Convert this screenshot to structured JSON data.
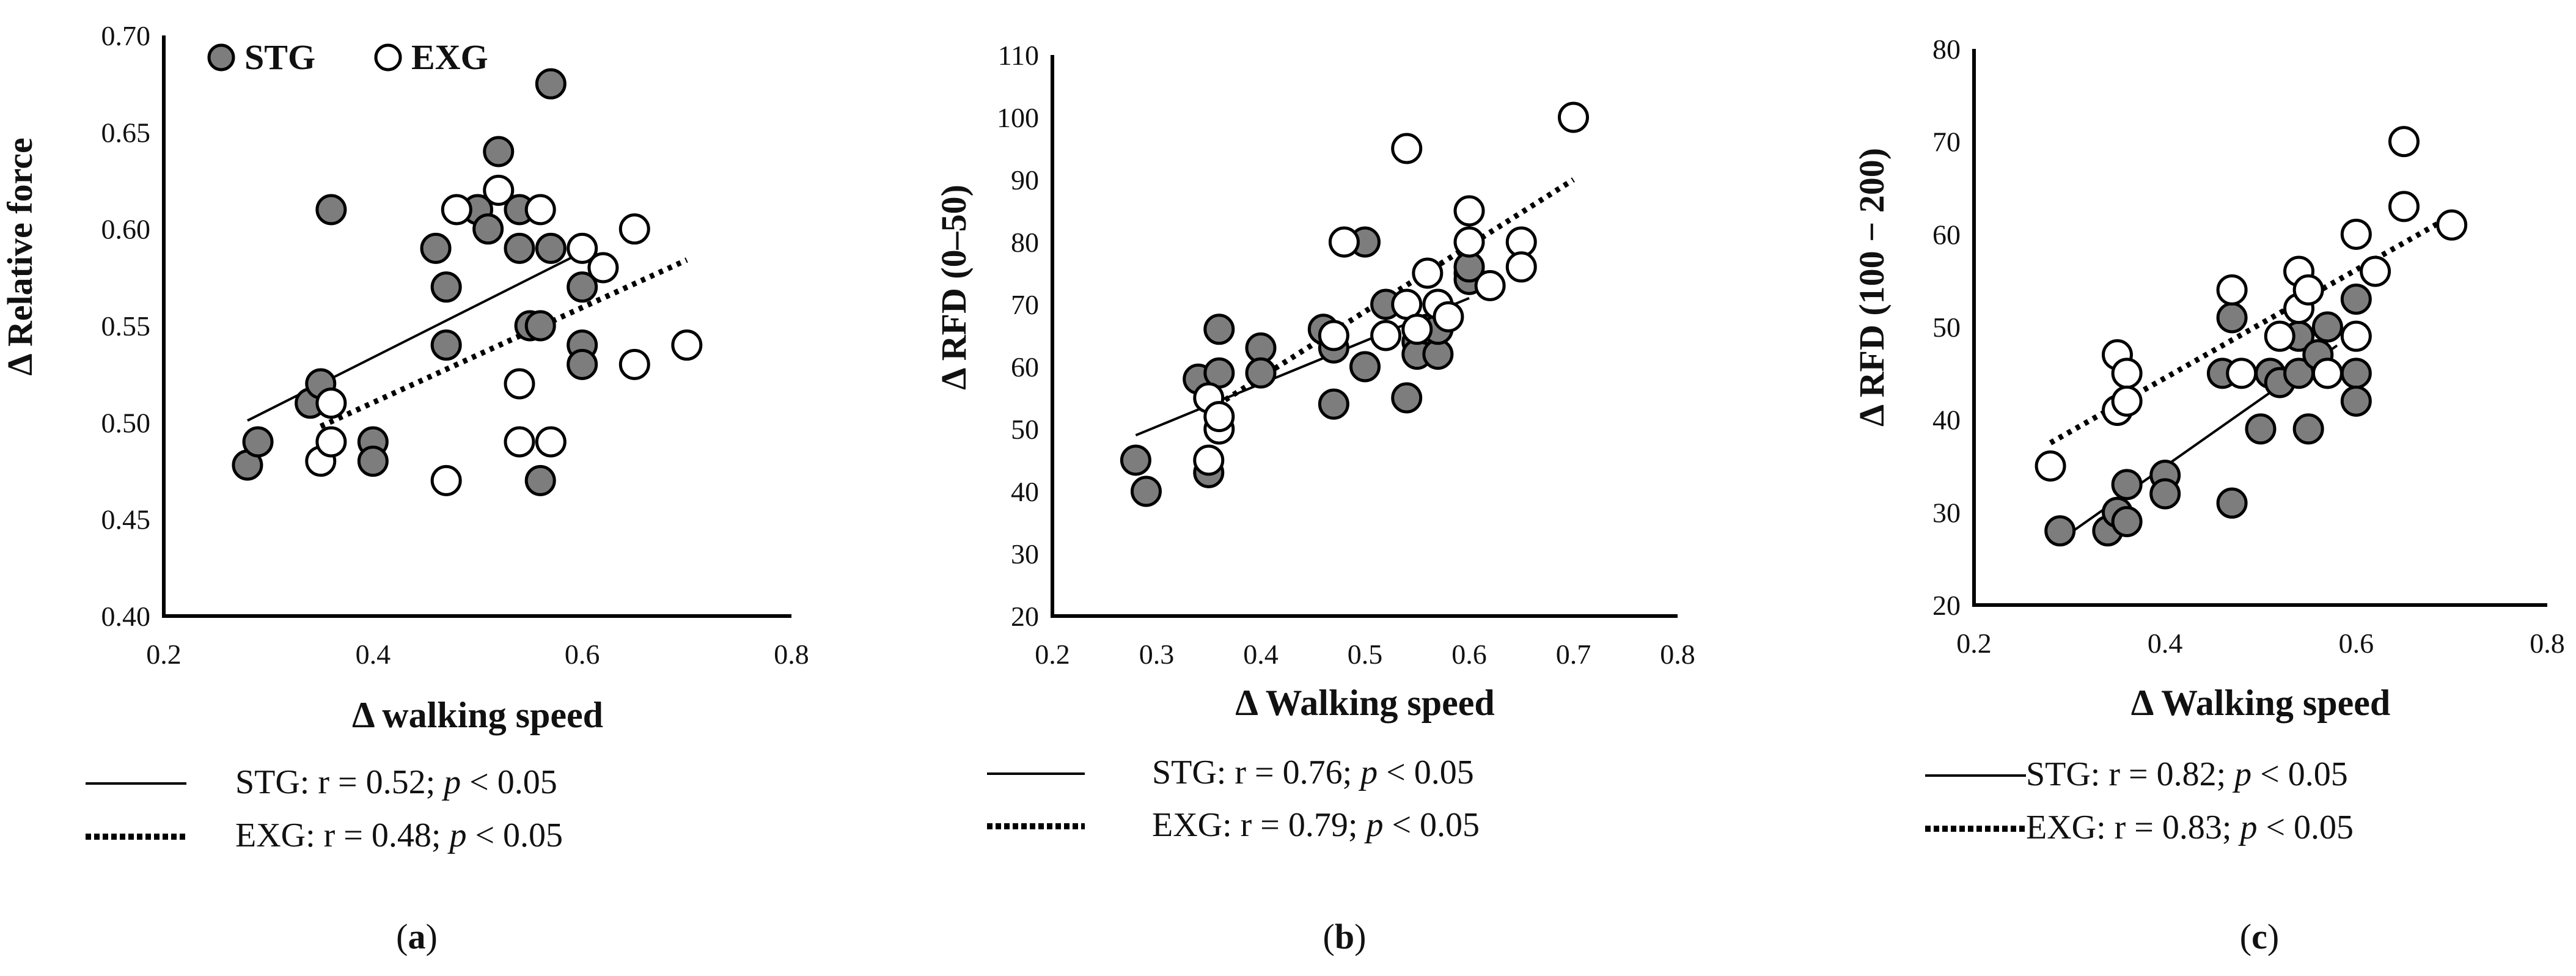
{
  "chart_data": [
    {
      "panel": "(a)",
      "panel_letter": "a",
      "type": "scatter",
      "xlabel": "Δ walking speed",
      "ylabel": "Δ  Relative force",
      "xlim": [
        0.2,
        0.8
      ],
      "ylim": [
        0.4,
        0.7
      ],
      "xticks": [
        "0.2",
        "0.4",
        "0.6",
        "0.8"
      ],
      "xtick_values": [
        0.2,
        0.4,
        0.6,
        0.8
      ],
      "yticks": [
        "0.40",
        "0.45",
        "0.50",
        "0.55",
        "0.60",
        "0.65",
        "0.70"
      ],
      "ytick_values": [
        0.4,
        0.45,
        0.5,
        0.55,
        0.6,
        0.65,
        0.7
      ],
      "legend": [
        "STG",
        "EXG"
      ],
      "series": [
        {
          "name": "STG",
          "marker": "filled",
          "points": [
            [
              0.28,
              0.478
            ],
            [
              0.29,
              0.49
            ],
            [
              0.34,
              0.51
            ],
            [
              0.35,
              0.52
            ],
            [
              0.36,
              0.61
            ],
            [
              0.4,
              0.49
            ],
            [
              0.4,
              0.48
            ],
            [
              0.46,
              0.59
            ],
            [
              0.47,
              0.57
            ],
            [
              0.47,
              0.54
            ],
            [
              0.5,
              0.61
            ],
            [
              0.51,
              0.6
            ],
            [
              0.52,
              0.64
            ],
            [
              0.54,
              0.61
            ],
            [
              0.54,
              0.59
            ],
            [
              0.55,
              0.55
            ],
            [
              0.56,
              0.55
            ],
            [
              0.57,
              0.675
            ],
            [
              0.57,
              0.59
            ],
            [
              0.56,
              0.47
            ],
            [
              0.6,
              0.57
            ],
            [
              0.6,
              0.54
            ],
            [
              0.6,
              0.53
            ]
          ],
          "trend": [
            [
              0.28,
              0.501
            ],
            [
              0.6,
              0.588
            ]
          ]
        },
        {
          "name": "EXG",
          "marker": "open",
          "points": [
            [
              0.35,
              0.48
            ],
            [
              0.36,
              0.51
            ],
            [
              0.36,
              0.49
            ],
            [
              0.47,
              0.47
            ],
            [
              0.48,
              0.61
            ],
            [
              0.52,
              0.62
            ],
            [
              0.54,
              0.52
            ],
            [
              0.54,
              0.49
            ],
            [
              0.56,
              0.61
            ],
            [
              0.57,
              0.49
            ],
            [
              0.6,
              0.59
            ],
            [
              0.62,
              0.58
            ],
            [
              0.65,
              0.6
            ],
            [
              0.65,
              0.53
            ],
            [
              0.7,
              0.54
            ]
          ],
          "trend": [
            [
              0.35,
              0.498
            ],
            [
              0.7,
              0.584
            ]
          ]
        }
      ],
      "stats": [
        {
          "name": "STG",
          "style": "solid",
          "label": "STG: r = 0.52; ",
          "p": "p",
          "tail": " < 0.05"
        },
        {
          "name": "EXG",
          "style": "dotted",
          "label": "EXG: r = 0.48; ",
          "p": "p",
          "tail": " < 0.05"
        }
      ]
    },
    {
      "panel": "(b)",
      "panel_letter": "b",
      "type": "scatter",
      "xlabel": "Δ Walking speed",
      "ylabel": "Δ  RFD (0–50)",
      "xlim": [
        0.2,
        0.8
      ],
      "ylim": [
        20,
        110
      ],
      "xticks": [
        "0.2",
        "0.3",
        "0.4",
        "0.5",
        "0.6",
        "0.7",
        "0.8"
      ],
      "xtick_values": [
        0.2,
        0.3,
        0.4,
        0.5,
        0.6,
        0.7,
        0.8
      ],
      "yticks": [
        "20",
        "30",
        "40",
        "50",
        "60",
        "70",
        "80",
        "90",
        "100",
        "110"
      ],
      "ytick_values": [
        20,
        30,
        40,
        50,
        60,
        70,
        80,
        90,
        100,
        110
      ],
      "series": [
        {
          "name": "STG",
          "marker": "filled",
          "points": [
            [
              0.28,
              45
            ],
            [
              0.29,
              40
            ],
            [
              0.34,
              58
            ],
            [
              0.35,
              43
            ],
            [
              0.36,
              59
            ],
            [
              0.36,
              66
            ],
            [
              0.4,
              63
            ],
            [
              0.4,
              59
            ],
            [
              0.46,
              66
            ],
            [
              0.47,
              63
            ],
            [
              0.47,
              54
            ],
            [
              0.5,
              80
            ],
            [
              0.5,
              60
            ],
            [
              0.52,
              70
            ],
            [
              0.54,
              55
            ],
            [
              0.55,
              64
            ],
            [
              0.55,
              62
            ],
            [
              0.56,
              66
            ],
            [
              0.57,
              62
            ],
            [
              0.57,
              66
            ],
            [
              0.6,
              75
            ],
            [
              0.6,
              74
            ],
            [
              0.6,
              76
            ]
          ],
          "trend": [
            [
              0.28,
              49
            ],
            [
              0.6,
              71
            ]
          ]
        },
        {
          "name": "EXG",
          "marker": "open",
          "points": [
            [
              0.35,
              55
            ],
            [
              0.35,
              45
            ],
            [
              0.36,
              50
            ],
            [
              0.36,
              52
            ],
            [
              0.47,
              65
            ],
            [
              0.48,
              80
            ],
            [
              0.52,
              65
            ],
            [
              0.54,
              95
            ],
            [
              0.54,
              70
            ],
            [
              0.55,
              66
            ],
            [
              0.56,
              75
            ],
            [
              0.57,
              70
            ],
            [
              0.58,
              68
            ],
            [
              0.6,
              85
            ],
            [
              0.6,
              80
            ],
            [
              0.62,
              73
            ],
            [
              0.65,
              80
            ],
            [
              0.65,
              76
            ],
            [
              0.7,
              100
            ]
          ],
          "trend": [
            [
              0.35,
              53
            ],
            [
              0.7,
              90
            ]
          ]
        }
      ],
      "stats": [
        {
          "name": "STG",
          "style": "solid",
          "label": "STG: r = 0.76; ",
          "p": "p",
          "tail": " < 0.05"
        },
        {
          "name": "EXG",
          "style": "dotted",
          "label": "EXG: r = 0.79; ",
          "p": "p",
          "tail": " < 0.05"
        }
      ]
    },
    {
      "panel": "(c)",
      "panel_letter": "c",
      "type": "scatter",
      "xlabel": "Δ Walking speed",
      "ylabel": "Δ  RFD (100 − 200)",
      "xlim": [
        0.2,
        0.8
      ],
      "ylim": [
        20,
        80
      ],
      "xticks": [
        "0.2",
        "0.4",
        "0.6",
        "0.8"
      ],
      "xtick_values": [
        0.2,
        0.4,
        0.6,
        0.8
      ],
      "yticks": [
        "20",
        "30",
        "40",
        "50",
        "60",
        "70",
        "80"
      ],
      "ytick_values": [
        20,
        30,
        40,
        50,
        60,
        70,
        80
      ],
      "series": [
        {
          "name": "STG",
          "marker": "filled",
          "points": [
            [
              0.29,
              28
            ],
            [
              0.34,
              28
            ],
            [
              0.35,
              30
            ],
            [
              0.36,
              29
            ],
            [
              0.36,
              33
            ],
            [
              0.4,
              34
            ],
            [
              0.4,
              32
            ],
            [
              0.46,
              45
            ],
            [
              0.47,
              51
            ],
            [
              0.47,
              31
            ],
            [
              0.5,
              39
            ],
            [
              0.51,
              45
            ],
            [
              0.52,
              44
            ],
            [
              0.54,
              45
            ],
            [
              0.54,
              49
            ],
            [
              0.55,
              39
            ],
            [
              0.56,
              47
            ],
            [
              0.57,
              50
            ],
            [
              0.57,
              45
            ],
            [
              0.6,
              53
            ],
            [
              0.6,
              45
            ],
            [
              0.6,
              42
            ]
          ],
          "trend": [
            [
              0.29,
              27
            ],
            [
              0.58,
              48
            ]
          ]
        },
        {
          "name": "EXG",
          "marker": "open",
          "points": [
            [
              0.28,
              35
            ],
            [
              0.35,
              47
            ],
            [
              0.35,
              41
            ],
            [
              0.36,
              45
            ],
            [
              0.36,
              42
            ],
            [
              0.47,
              54
            ],
            [
              0.48,
              45
            ],
            [
              0.52,
              49
            ],
            [
              0.54,
              56
            ],
            [
              0.54,
              52
            ],
            [
              0.55,
              54
            ],
            [
              0.57,
              45
            ],
            [
              0.6,
              60
            ],
            [
              0.6,
              49
            ],
            [
              0.62,
              56
            ],
            [
              0.65,
              70
            ],
            [
              0.65,
              63
            ],
            [
              0.7,
              61
            ]
          ],
          "trend": [
            [
              0.28,
              37.5
            ],
            [
              0.7,
              62
            ]
          ]
        }
      ],
      "stats": [
        {
          "name": "STG",
          "style": "solid",
          "label": "STG: r = 0.82; ",
          "p": "p",
          "tail": " < 0.05"
        },
        {
          "name": "EXG",
          "style": "dotted",
          "label": "EXG: r = 0.83; ",
          "p": "p",
          "tail": " < 0.05"
        }
      ]
    }
  ]
}
